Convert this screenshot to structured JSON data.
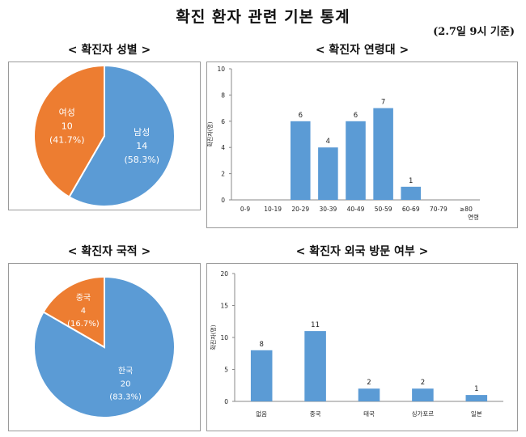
{
  "header": {
    "title": "확진 환자 관련 기본 통계",
    "basis": "(2.7일 9시 기준)"
  },
  "sections": {
    "gender": "< 확진자 성별 >",
    "age": "< 확진자 연령대 >",
    "nationality": "< 확진자 국적 >",
    "travel": "< 확진자 외국 방문 여부 >"
  },
  "colors": {
    "blue": "#5b9bd5",
    "orange": "#ed7d31",
    "white": "#ffffff"
  },
  "chart_data": [
    {
      "id": "gender",
      "type": "pie",
      "title": "< 확진자 성별 >",
      "slices": [
        {
          "label": "남성",
          "value": 14,
          "percent": "(58.3%)",
          "color": "#5b9bd5"
        },
        {
          "label": "여성",
          "value": 10,
          "percent": "(41.7%)",
          "color": "#ed7d31"
        }
      ]
    },
    {
      "id": "age",
      "type": "bar",
      "title": "< 확진자 연령대 >",
      "categories": [
        "0-9",
        "10-19",
        "20-29",
        "30-39",
        "40-49",
        "50-59",
        "60-69",
        "70-79",
        "≥80"
      ],
      "values": [
        0,
        0,
        6,
        4,
        6,
        7,
        1,
        0,
        0
      ],
      "yticks": [
        0,
        2,
        4,
        6,
        8,
        10
      ],
      "ylim": [
        0,
        10
      ],
      "xlabel": "연령",
      "ylabel": "확진자(명)",
      "color": "#5b9bd5"
    },
    {
      "id": "nationality",
      "type": "pie",
      "title": "< 확진자 국적 >",
      "slices": [
        {
          "label": "한국",
          "value": 20,
          "percent": "(83.3%)",
          "color": "#5b9bd5"
        },
        {
          "label": "중국",
          "value": 4,
          "percent": "(16.7%)",
          "color": "#ed7d31"
        }
      ]
    },
    {
      "id": "travel",
      "type": "bar",
      "title": "< 확진자 외국 방문 여부 >",
      "categories": [
        "없음",
        "중국",
        "태국",
        "싱가포르",
        "일본"
      ],
      "values": [
        8,
        11,
        2,
        2,
        1
      ],
      "yticks": [
        0,
        5,
        10,
        15,
        20
      ],
      "ylim": [
        0,
        20
      ],
      "xlabel": "",
      "ylabel": "확진자(명)",
      "color": "#5b9bd5"
    }
  ]
}
